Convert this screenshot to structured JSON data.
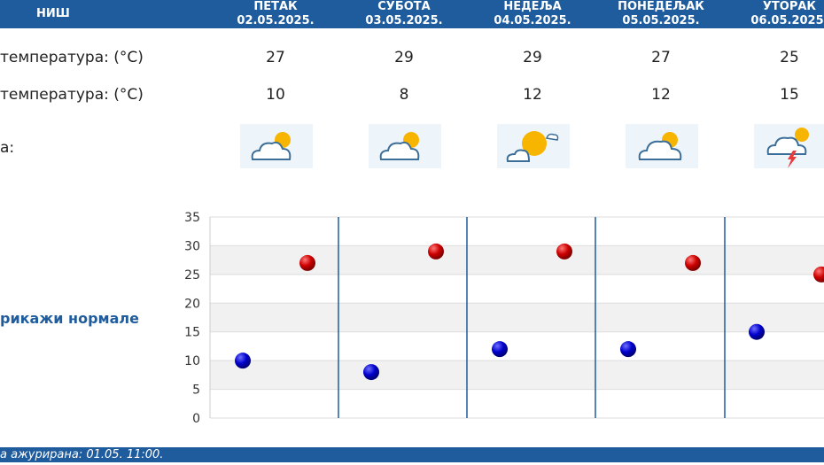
{
  "header": {
    "city": "НИШ",
    "days": [
      {
        "day": "ПЕТАК",
        "date": "02.05.2025."
      },
      {
        "day": "СУБОТА",
        "date": "03.05.2025."
      },
      {
        "day": "НЕДЕЉА",
        "date": "04.05.2025."
      },
      {
        "day": "ПОНЕДЕЉАК",
        "date": "05.05.2025."
      },
      {
        "day": "УТОРАК",
        "date": "06.05.2025."
      }
    ]
  },
  "rows": {
    "max_label": "температура: (°C)",
    "min_label": "температура: (°C)",
    "weather_label": "а:",
    "max": [
      "27",
      "29",
      "29",
      "27",
      "25"
    ],
    "min": [
      "10",
      "8",
      "12",
      "12",
      "15"
    ]
  },
  "icons": [
    "partly-cloudy-icon",
    "partly-cloudy-icon",
    "mostly-sunny-icon",
    "cloudy-sun-icon",
    "thunderstorm-icon"
  ],
  "normals_label": "рикажи нормале",
  "footer": {
    "text": "а ажурирана:  01.05.  11:00."
  },
  "chart_data": {
    "type": "scatter",
    "ylim": [
      0,
      35
    ],
    "yticks": [
      0,
      5,
      10,
      15,
      20,
      25,
      30,
      35
    ],
    "grid": true,
    "series": [
      {
        "values": [
          27,
          29,
          29,
          27,
          25
        ],
        "color": "#cc0000"
      },
      {
        "values": [
          10,
          8,
          12,
          12,
          15
        ],
        "color": "#0000bb"
      }
    ]
  }
}
